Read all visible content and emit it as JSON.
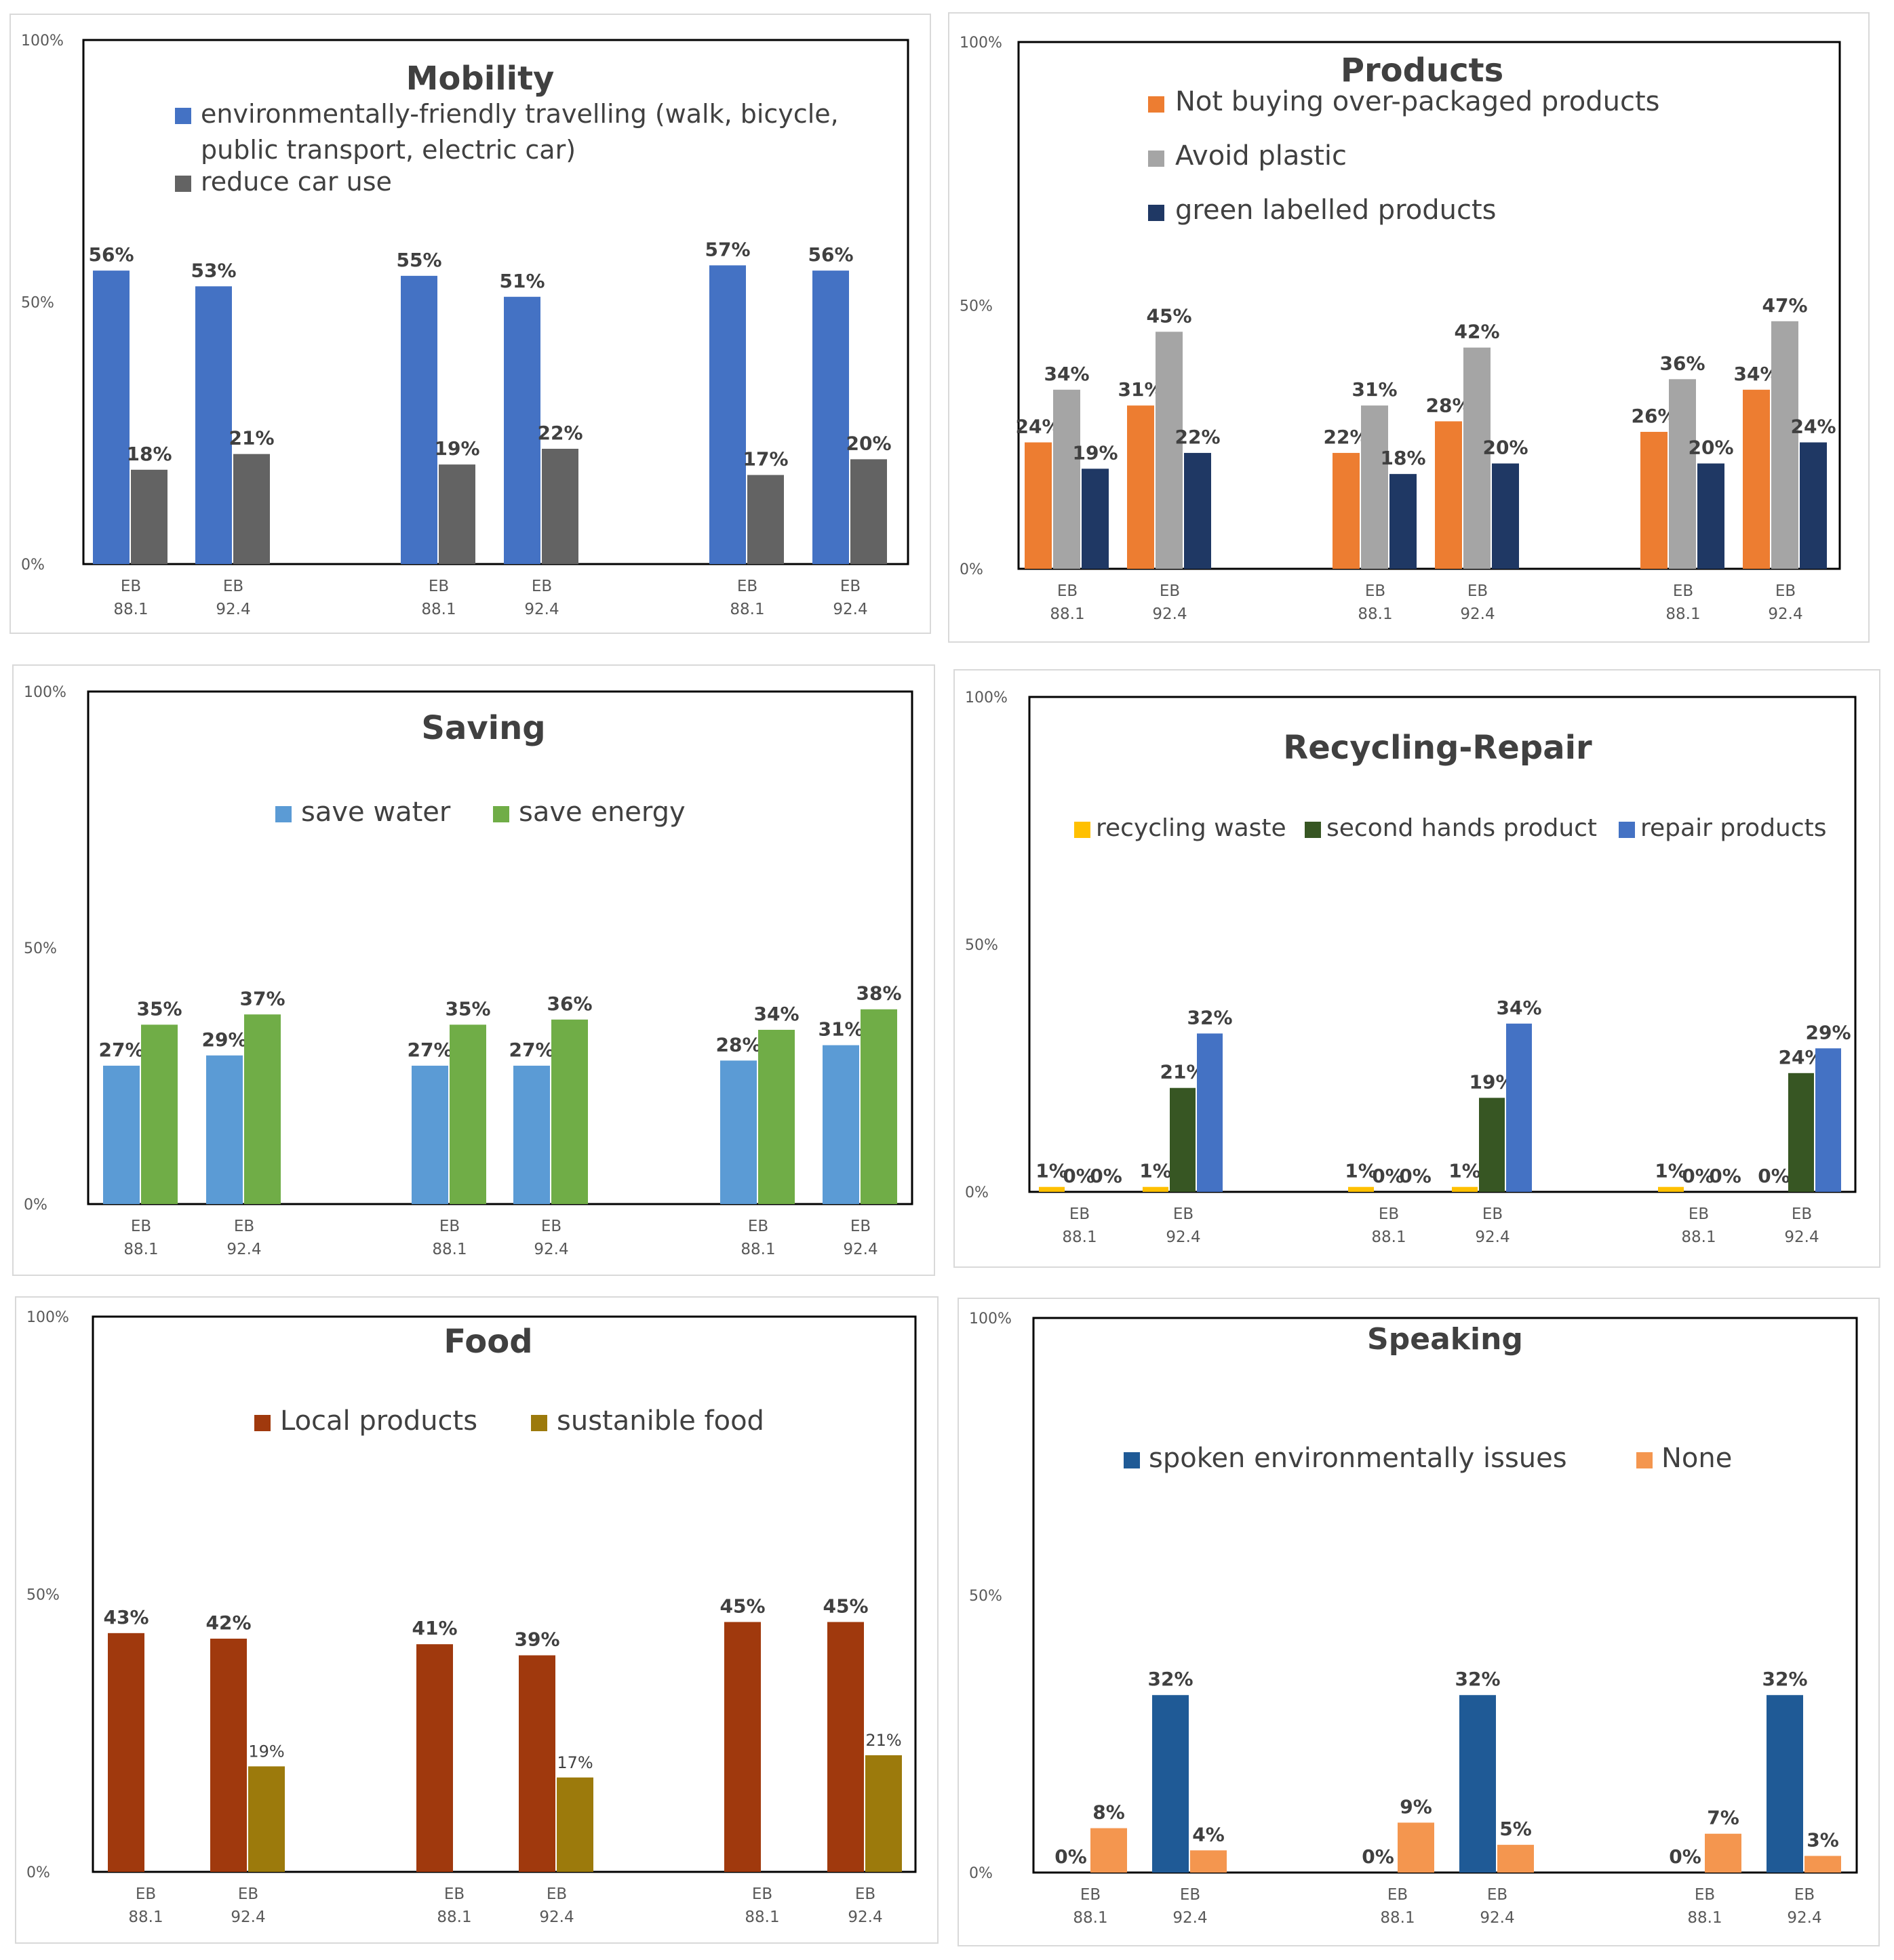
{
  "common": {
    "y_tick_labels": [
      "100%",
      "50%",
      "0%"
    ],
    "x_categories": [
      [
        "EB",
        "88.1"
      ],
      [
        "EB",
        "92.4"
      ],
      [
        "EB",
        "88.1"
      ],
      [
        "EB",
        "92.4"
      ],
      [
        "EB",
        "88.1"
      ],
      [
        "EB",
        "92.4"
      ]
    ]
  },
  "chart_data": [
    {
      "id": "mobility",
      "type": "bar",
      "title": "Mobility",
      "ylim": [
        0,
        100
      ],
      "yticks": [
        "100%",
        "50%",
        "0%"
      ],
      "categories": [
        "EB 88.1",
        "EB 92.4",
        "EB 88.1",
        "EB 92.4",
        "EB 88.1",
        "EB 92.4"
      ],
      "legend": [
        "environmentally-friendly travelling (walk, bicycle, public transport, electric car)",
        "reduce car use"
      ],
      "legend_lines": [
        [
          "environmentally-friendly travelling (walk, bicycle,",
          "public transport, electric car)"
        ],
        [
          "reduce car use"
        ]
      ],
      "series": [
        {
          "name": "environmentally-friendly travelling (walk, bicycle, public transport, electric car)",
          "color": "#4472C4",
          "values": [
            56,
            53,
            55,
            51,
            57,
            56
          ]
        },
        {
          "name": "reduce car use",
          "color": "#636363",
          "values": [
            18,
            21,
            19,
            22,
            17,
            20
          ]
        }
      ]
    },
    {
      "id": "products",
      "type": "bar",
      "title": "Products",
      "ylim": [
        0,
        100
      ],
      "yticks": [
        "100%",
        "50%",
        "0%"
      ],
      "categories": [
        "EB 88.1",
        "EB 92.4",
        "EB 88.1",
        "EB 92.4",
        "EB 88.1",
        "EB 92.4"
      ],
      "legend": [
        "Not buying over-packaged products",
        "Avoid plastic",
        "green labelled products"
      ],
      "series": [
        {
          "name": "Not buying over-packaged products",
          "color": "#ED7D31",
          "values": [
            24,
            31,
            22,
            28,
            26,
            34
          ]
        },
        {
          "name": "Avoid plastic",
          "color": "#A5A5A5",
          "values": [
            34,
            45,
            31,
            42,
            36,
            47
          ]
        },
        {
          "name": "green labelled products",
          "color": "#1F3864",
          "values": [
            19,
            22,
            18,
            20,
            20,
            24
          ]
        }
      ]
    },
    {
      "id": "saving",
      "type": "bar",
      "title": "Saving",
      "ylim": [
        0,
        100
      ],
      "yticks": [
        "100%",
        "50%",
        "0%"
      ],
      "categories": [
        "EB 88.1",
        "EB 92.4",
        "EB 88.1",
        "EB 92.4",
        "EB 88.1",
        "EB 92.4"
      ],
      "legend": [
        "save water",
        "save energy"
      ],
      "series": [
        {
          "name": "save water",
          "color": "#5B9BD5",
          "values": [
            27,
            29,
            27,
            27,
            28,
            31
          ]
        },
        {
          "name": "save energy",
          "color": "#70AD47",
          "values": [
            35,
            37,
            35,
            36,
            34,
            38
          ]
        }
      ]
    },
    {
      "id": "recycling",
      "type": "bar",
      "title": "Recycling-Repair",
      "ylim": [
        0,
        100
      ],
      "yticks": [
        "100%",
        "50%",
        "0%"
      ],
      "categories": [
        "EB 88.1",
        "EB 92.4",
        "EB 88.1",
        "EB 92.4",
        "EB 88.1",
        "EB 92.4"
      ],
      "legend": [
        "recycling waste",
        "second hands product",
        "repair products"
      ],
      "series": [
        {
          "name": "recycling waste",
          "color": "#FFC000",
          "values": [
            1,
            1,
            1,
            1,
            1,
            0
          ]
        },
        {
          "name": "second hands product",
          "color": "#375623",
          "values": [
            0,
            21,
            0,
            19,
            0,
            24
          ]
        },
        {
          "name": "repair products",
          "color": "#4472C4",
          "values": [
            0,
            32,
            0,
            34,
            0,
            29
          ]
        }
      ]
    },
    {
      "id": "food",
      "type": "bar",
      "title": "Food",
      "ylim": [
        0,
        100
      ],
      "yticks": [
        "100%",
        "50%",
        "0%"
      ],
      "categories": [
        "EB 88.1",
        "EB 92.4",
        "EB 88.1",
        "EB 92.4",
        "EB 88.1",
        "EB 92.4"
      ],
      "legend": [
        "Local products",
        "sustanible food"
      ],
      "series": [
        {
          "name": "Local products",
          "color": "#A0390D",
          "values": [
            43,
            42,
            41,
            39,
            45,
            45
          ],
          "labels": [
            "43%",
            "42%",
            "41%",
            "39%",
            "45%",
            "45%"
          ]
        },
        {
          "name": "sustanible food",
          "color": "#9C7A0C",
          "values": [
            null,
            19,
            null,
            17,
            null,
            21
          ],
          "labels": [
            "",
            "19%",
            "",
            "17%",
            "",
            "21%"
          ]
        }
      ]
    },
    {
      "id": "speaking",
      "type": "bar",
      "title": "Speaking",
      "ylim": [
        0,
        100
      ],
      "yticks": [
        "100%",
        "50%",
        "0%"
      ],
      "categories": [
        "EB 88.1",
        "EB 92.4",
        "EB 88.1",
        "EB 92.4",
        "EB 88.1",
        "EB 92.4"
      ],
      "legend": [
        "spoken environmentally issues",
        "None"
      ],
      "series": [
        {
          "name": "spoken environmentally issues",
          "color": "#1F5A96",
          "values": [
            0,
            32,
            0,
            32,
            0,
            32
          ]
        },
        {
          "name": "None",
          "color": "#F4964F",
          "values": [
            8,
            4,
            9,
            5,
            7,
            3
          ]
        }
      ]
    }
  ]
}
